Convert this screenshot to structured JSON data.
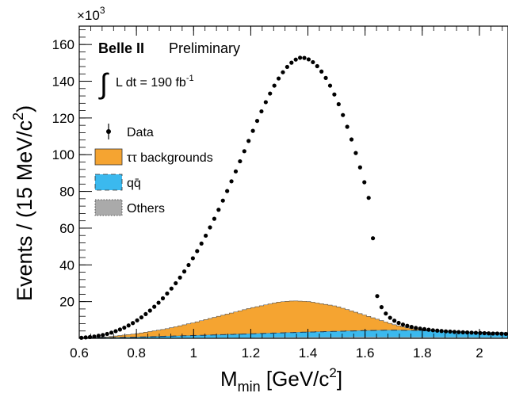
{
  "chart_data": {
    "type": "scatter",
    "experiment": "Belle II",
    "status": "Preliminary",
    "luminosity_label": "L dt = 190 fb",
    "luminosity_exponent": "-1",
    "xlabel": "M",
    "xlabel_sub": "min",
    "xlabel_units": "[GeV/c",
    "xlabel_units_exp": "2",
    "xlabel_close": "]",
    "ylabel": "Events / (15 MeV/c",
    "ylabel_exp": "2",
    "ylabel_close": ")",
    "y_multiplier": "×10",
    "y_multiplier_exp": "3",
    "xlim": [
      0.6,
      2.1
    ],
    "ylim": [
      0,
      170
    ],
    "x_ticks": [
      0.6,
      0.8,
      1.0,
      1.2,
      1.4,
      1.6,
      1.8,
      2.0
    ],
    "x_tick_labels": [
      "0.6",
      "0.8",
      "1",
      "1.2",
      "1.4",
      "1.6",
      "1.8",
      "2"
    ],
    "y_ticks": [
      20,
      40,
      60,
      80,
      100,
      120,
      140,
      160
    ],
    "y_tick_labels": [
      "20",
      "40",
      "60",
      "80",
      "100",
      "120",
      "140",
      "160"
    ],
    "legend": {
      "position": "top-left",
      "entries": [
        {
          "label": "Data",
          "style": "marker",
          "color": "#000000"
        },
        {
          "label": "ττ backgrounds",
          "style": "fill",
          "color": "#f5a431"
        },
        {
          "label": "qq̄",
          "style": "fill-dashed",
          "color": "#3bb9ee"
        },
        {
          "label": "Others",
          "style": "fill-dotted",
          "color": "#aaaaaa"
        }
      ]
    },
    "series": [
      {
        "name": "Data",
        "x": [
          0.6075,
          0.6225,
          0.6375,
          0.6525,
          0.6675,
          0.6825,
          0.6975,
          0.7125,
          0.7275,
          0.7425,
          0.7575,
          0.7725,
          0.7875,
          0.8025,
          0.8175,
          0.8325,
          0.8475,
          0.8625,
          0.8775,
          0.8925,
          0.9075,
          0.9225,
          0.9375,
          0.9525,
          0.9675,
          0.9825,
          0.9975,
          1.0125,
          1.0275,
          1.0425,
          1.0575,
          1.0725,
          1.0875,
          1.1025,
          1.1175,
          1.1325,
          1.1475,
          1.1625,
          1.1775,
          1.1925,
          1.2075,
          1.2225,
          1.2375,
          1.2525,
          1.2675,
          1.2825,
          1.2975,
          1.3125,
          1.3275,
          1.3425,
          1.3575,
          1.3725,
          1.3875,
          1.4025,
          1.4175,
          1.4325,
          1.4475,
          1.4625,
          1.4775,
          1.4925,
          1.5075,
          1.5225,
          1.5375,
          1.5525,
          1.5675,
          1.5825,
          1.5975,
          1.6125,
          1.6275,
          1.6425,
          1.6575,
          1.6725,
          1.6875,
          1.7025,
          1.7175,
          1.7325,
          1.7475,
          1.7625,
          1.7775,
          1.7925,
          1.8075,
          1.8225,
          1.8375,
          1.8525,
          1.8675,
          1.8825,
          1.8975,
          1.9125,
          1.9275,
          1.9425,
          1.9575,
          1.9725,
          1.9875,
          2.0025,
          2.0175,
          2.0325,
          2.0475,
          2.0625,
          2.0775,
          2.0925
        ],
        "y": [
          0.3,
          0.5,
          0.7,
          1.0,
          1.4,
          1.8,
          2.4,
          3.1,
          3.9,
          4.8,
          5.8,
          7.0,
          8.3,
          9.8,
          11.4,
          13.2,
          15.1,
          17.2,
          19.4,
          21.8,
          24.4,
          27.1,
          30.0,
          33.1,
          36.4,
          39.9,
          43.6,
          47.5,
          51.6,
          55.9,
          60.4,
          65.1,
          70.0,
          75.0,
          80.2,
          85.5,
          90.9,
          96.4,
          101.9,
          107.5,
          113.0,
          118.4,
          123.6,
          128.6,
          133.3,
          137.6,
          141.5,
          144.9,
          147.8,
          150.1,
          151.8,
          152.8,
          152.7,
          151.9,
          150.4,
          148.2,
          145.3,
          141.8,
          137.6,
          132.8,
          127.5,
          121.6,
          115.2,
          108.3,
          100.9,
          93.1,
          85.0,
          76.5,
          54.5,
          23.0,
          17.0,
          13.5,
          11.2,
          9.6,
          8.4,
          7.5,
          6.8,
          6.2,
          5.7,
          5.3,
          5.0,
          4.7,
          4.4,
          4.2,
          4.0,
          3.8,
          3.7,
          3.5,
          3.4,
          3.3,
          3.2,
          3.1,
          3.0,
          2.9,
          2.8,
          2.7,
          2.6,
          2.6,
          2.5,
          2.4
        ],
        "note_y_scale": "values in units of 10^3"
      },
      {
        "name": "ττ backgrounds",
        "x": [
          0.6,
          0.7,
          0.8,
          0.9,
          1.0,
          1.1,
          1.2,
          1.3,
          1.35,
          1.4,
          1.5,
          1.6,
          1.7,
          1.75,
          1.8,
          1.9,
          2.0,
          2.1
        ],
        "y": [
          0.2,
          0.8,
          2.5,
          5.0,
          8.5,
          12.5,
          16.5,
          19.8,
          20.4,
          20.1,
          17.5,
          12.6,
          7.5,
          5.6,
          4.6,
          3.6,
          3.0,
          2.6
        ]
      },
      {
        "name": "qq̄",
        "x": [
          0.6,
          0.8,
          1.0,
          1.2,
          1.4,
          1.6,
          1.7,
          1.8,
          1.9,
          2.0,
          2.1
        ],
        "y": [
          0.1,
          0.5,
          1.2,
          2.0,
          2.8,
          3.5,
          3.8,
          3.6,
          3.2,
          2.8,
          2.5
        ]
      },
      {
        "name": "Others",
        "x": [
          0.6,
          0.8,
          1.0,
          1.2,
          1.4,
          1.6,
          1.8,
          2.0,
          2.1
        ],
        "y": [
          0.05,
          0.15,
          0.3,
          0.45,
          0.6,
          0.7,
          0.6,
          0.5,
          0.45
        ]
      }
    ]
  }
}
